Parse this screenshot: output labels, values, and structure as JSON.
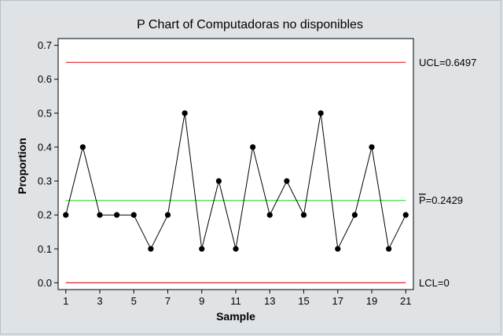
{
  "chart_data": {
    "type": "line",
    "title": "P Chart of Computadoras no disponibles",
    "xlabel": "Sample",
    "ylabel": "Proportion",
    "x": [
      1,
      2,
      3,
      4,
      5,
      6,
      7,
      8,
      9,
      10,
      11,
      12,
      13,
      14,
      15,
      16,
      17,
      18,
      19,
      20,
      21
    ],
    "values": [
      0.2,
      0.4,
      0.2,
      0.2,
      0.2,
      0.1,
      0.2,
      0.5,
      0.1,
      0.3,
      0.1,
      0.4,
      0.2,
      0.3,
      0.2,
      0.5,
      0.1,
      0.2,
      0.4,
      0.1,
      0.2
    ],
    "xlim": [
      0.55,
      21.45
    ],
    "ylim": [
      -0.02,
      0.72
    ],
    "x_ticks": [
      1,
      3,
      5,
      7,
      9,
      11,
      13,
      15,
      17,
      19,
      21
    ],
    "x_tick_labels": [
      "1",
      "3",
      "5",
      "7",
      "9",
      "11",
      "13",
      "15",
      "17",
      "19",
      "21"
    ],
    "y_ticks": [
      0.0,
      0.1,
      0.2,
      0.3,
      0.4,
      0.5,
      0.6,
      0.7
    ],
    "y_tick_labels": [
      "0.0",
      "0.1",
      "0.2",
      "0.3",
      "0.4",
      "0.5",
      "0.6",
      "0.7"
    ],
    "grid": false,
    "limits": {
      "ucl": {
        "value": 0.6497,
        "label": "UCL=0.6497",
        "color": "#e0242b"
      },
      "center": {
        "value": 0.2429,
        "label_bar": "P",
        "label_rest": "=0.2429",
        "color": "#33dd33"
      },
      "lcl": {
        "value": 0,
        "label": "LCL=0",
        "color": "#e0242b"
      }
    },
    "colors": {
      "background": "#dfe3e6",
      "plot_area": "#ffffff",
      "series": "#000000"
    }
  }
}
